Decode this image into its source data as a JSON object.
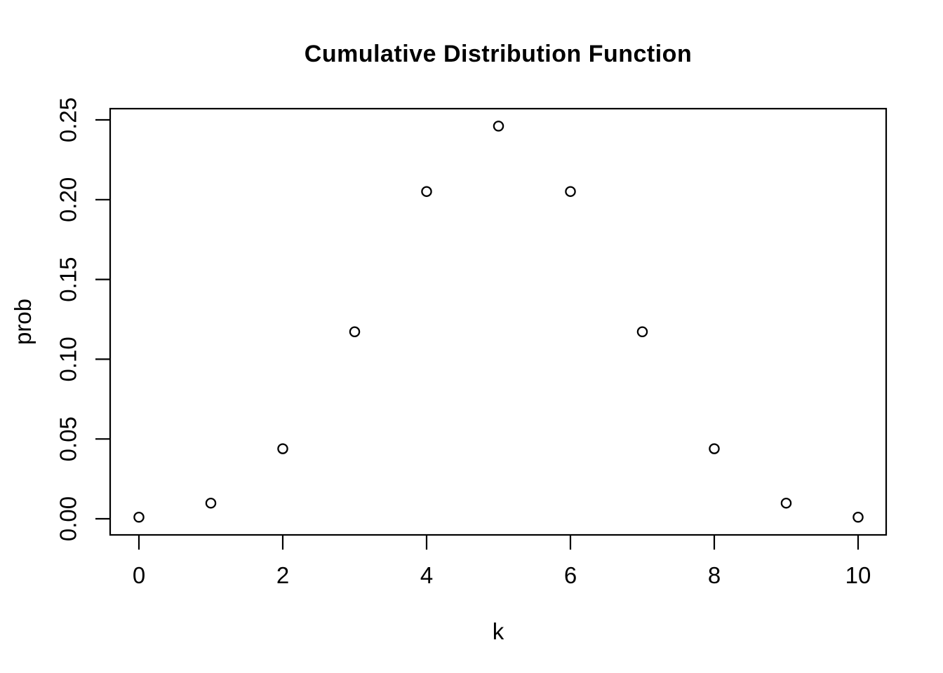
{
  "figure": {
    "background": "#ffffff",
    "foreground": "#000000"
  },
  "chart_data": {
    "type": "scatter",
    "title": "Cumulative Distribution Function",
    "xlabel": "k",
    "ylabel": "prob",
    "x": [
      0,
      1,
      2,
      3,
      4,
      5,
      6,
      7,
      8,
      9,
      10
    ],
    "y": [
      0.001,
      0.0098,
      0.0439,
      0.1172,
      0.2051,
      0.2461,
      0.2051,
      0.1172,
      0.0439,
      0.0098,
      0.001
    ],
    "x_ticks": [
      0,
      2,
      4,
      6,
      8,
      10
    ],
    "y_ticks": [
      "0.00",
      "0.05",
      "0.10",
      "0.15",
      "0.20",
      "0.25"
    ],
    "xlim": [
      0,
      10
    ],
    "ylim": [
      0,
      0.25
    ],
    "marker": "open-circle",
    "grid": false,
    "legend": "none"
  }
}
